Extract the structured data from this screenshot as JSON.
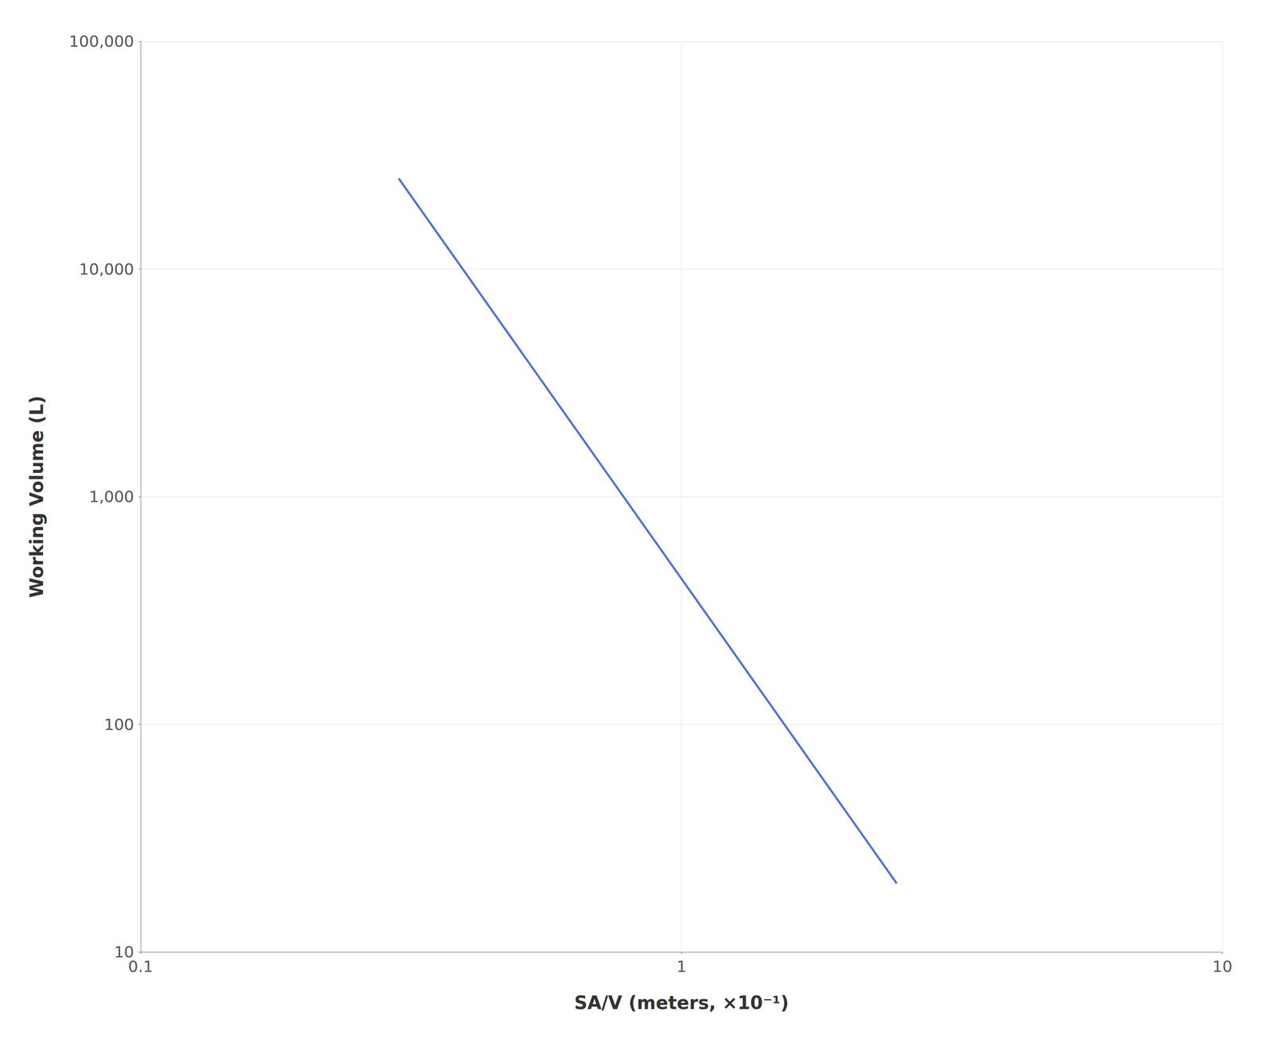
{
  "chart_data": {
    "type": "line",
    "x": [
      0.3,
      2.5
    ],
    "values": [
      25000,
      20
    ],
    "xlabel": "SA/V (meters, ×10⁻¹)",
    "ylabel": "Working Volume (L)",
    "xlim": [
      0.1,
      10
    ],
    "ylim": [
      10,
      100000
    ],
    "xticks": [
      0.1,
      1,
      10
    ],
    "yticks": [
      10,
      100,
      {
        "value": 1000,
        "label": "1,000"
      },
      {
        "value": 10000,
        "label": "10,000"
      },
      {
        "value": 100000,
        "label": "100,000"
      }
    ],
    "log": true,
    "grid": true
  }
}
